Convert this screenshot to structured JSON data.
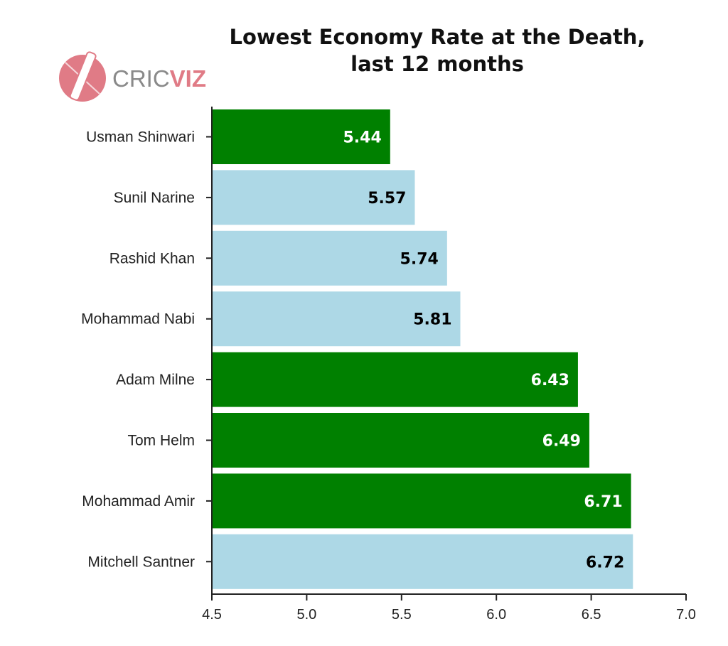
{
  "brand": {
    "part1": "CRIC",
    "part2": "VIZ",
    "color": "#e07b86"
  },
  "chart_data": {
    "type": "bar",
    "orientation": "horizontal",
    "title": [
      "Lowest Economy Rate at the Death,",
      "last 12 months"
    ],
    "xlabel": "",
    "ylabel": "",
    "categories": [
      "Usman Shinwari",
      "Sunil Narine",
      "Rashid Khan",
      "Mohammad Nabi",
      "Adam Milne",
      "Tom Helm",
      "Mohammad Amir",
      "Mitchell Santner"
    ],
    "values": [
      5.44,
      5.57,
      5.74,
      5.81,
      6.43,
      6.49,
      6.71,
      6.72
    ],
    "value_labels": [
      "5.44",
      "5.57",
      "5.74",
      "5.81",
      "6.43",
      "6.49",
      "6.71",
      "6.72"
    ],
    "bar_colors": [
      "#008000",
      "#add8e6",
      "#add8e6",
      "#add8e6",
      "#008000",
      "#008000",
      "#008000",
      "#add8e6"
    ],
    "label_colors": [
      "#ffffff",
      "#000000",
      "#000000",
      "#000000",
      "#ffffff",
      "#ffffff",
      "#ffffff",
      "#000000"
    ],
    "xlim": [
      4.5,
      7.0
    ],
    "xticks": [
      "4.5",
      "5.0",
      "5.5",
      "6.0",
      "6.5",
      "7.0"
    ],
    "grid": false
  }
}
